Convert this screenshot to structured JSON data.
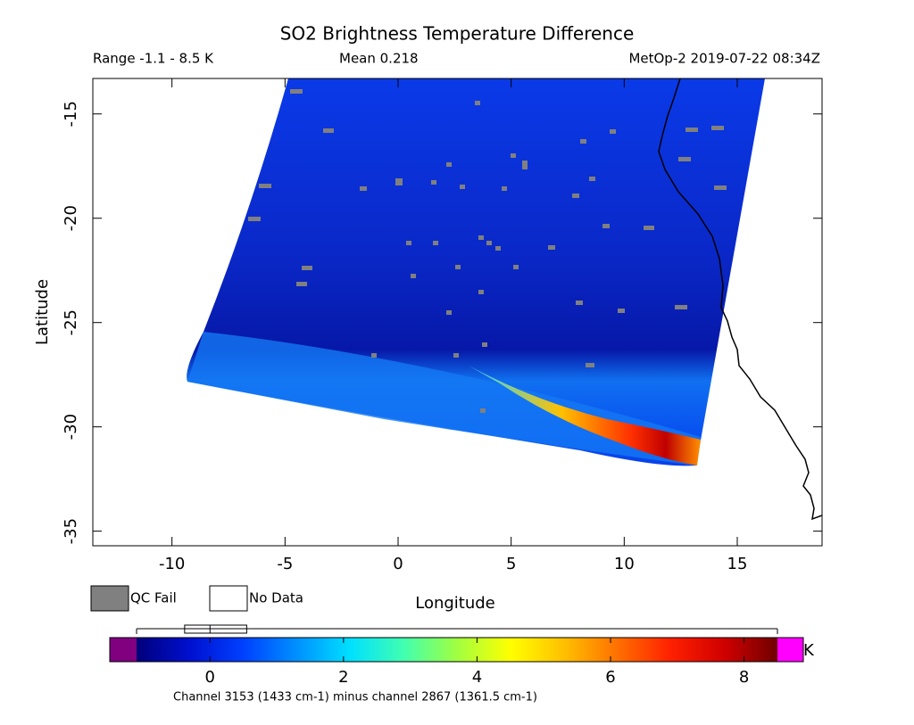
{
  "chart_data": {
    "type": "swath",
    "title": "SO2 Brightness Temperature Difference",
    "range_text": "Range -1.1 - 8.5 K",
    "mean_text": "Mean 0.218",
    "source_text": "MetOp-2 2019-07-22 08:34Z",
    "xlabel": "Longitude",
    "ylabel": "Latitude",
    "xlim": [
      -13.5,
      18.75
    ],
    "ylim": [
      -35.7,
      -13.3
    ],
    "xticks": [
      -10,
      -5,
      0,
      5,
      10,
      15
    ],
    "yticks": [
      -15,
      -20,
      -25,
      -30,
      -35
    ],
    "legend": [
      {
        "name": "QC Fail",
        "color": "#808080"
      },
      {
        "name": "No Data",
        "color": "#ffffff"
      }
    ],
    "colorbar": {
      "clim": [
        -1.1,
        8.5
      ],
      "ticks": [
        0,
        2,
        4,
        6,
        8
      ],
      "unit": "K",
      "under_color": "#800080",
      "over_color": "#ff00ff",
      "colors": [
        "#00007a",
        "#0010d0",
        "#0040ff",
        "#0090ff",
        "#00e0ff",
        "#40ffb0",
        "#a0ff40",
        "#ffff00",
        "#ffc000",
        "#ff7000",
        "#ff2000",
        "#d00000",
        "#700000"
      ],
      "box": {
        "min": -1.1,
        "q1": -0.38,
        "median": 0.0,
        "q3": 0.55,
        "max": 8.5
      }
    },
    "caption": "Channel 3153 (1433 cm-1) minus channel 2867 (1361.5 cm-1)"
  }
}
